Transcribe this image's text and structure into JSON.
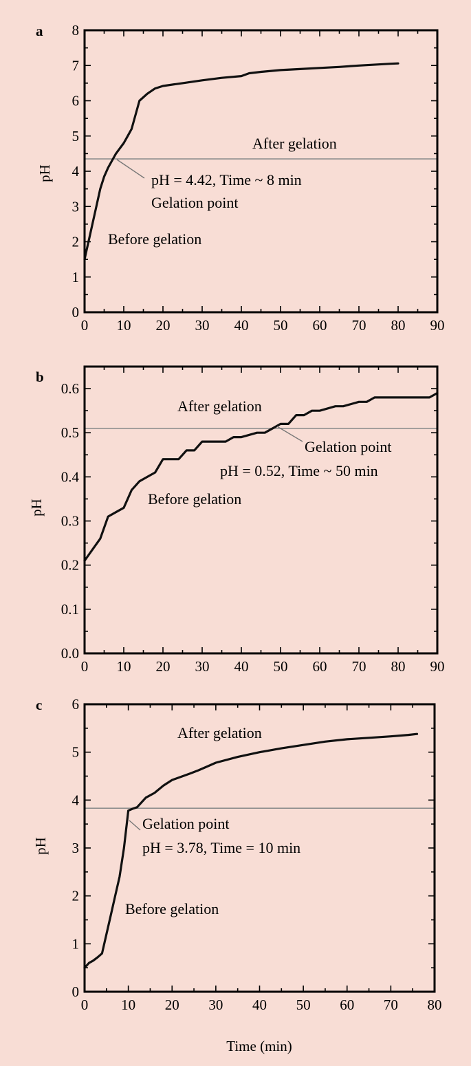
{
  "chart_data": [
    {
      "type": "line",
      "panel": "a",
      "ylabel": "pH",
      "xlabel": "",
      "xlim": [
        0,
        90
      ],
      "ylim": [
        0,
        8
      ],
      "x_ticks": [
        "0",
        "10",
        "20",
        "30",
        "40",
        "50",
        "60",
        "70",
        "80",
        "90"
      ],
      "y_ticks": [
        "0",
        "1",
        "2",
        "3",
        "4",
        "5",
        "6",
        "7",
        "8"
      ],
      "reference_y": 4.35,
      "gelation_point": {
        "x": 8,
        "y": 4.42
      },
      "series": [
        {
          "x": [
            0,
            0.5,
            1,
            2,
            3,
            4,
            5,
            6,
            7,
            8,
            9,
            10,
            11,
            12,
            13,
            14,
            16,
            18,
            20,
            25,
            30,
            35,
            40,
            42,
            45,
            50,
            55,
            60,
            65,
            70,
            75,
            78,
            80
          ],
          "y": [
            1.5,
            1.75,
            2.0,
            2.5,
            3.0,
            3.5,
            3.85,
            4.1,
            4.3,
            4.5,
            4.65,
            4.8,
            5.0,
            5.2,
            5.6,
            6.0,
            6.2,
            6.35,
            6.42,
            6.5,
            6.58,
            6.65,
            6.7,
            6.78,
            6.82,
            6.87,
            6.9,
            6.93,
            6.96,
            7.0,
            7.03,
            7.05,
            7.06
          ]
        }
      ],
      "annotations": {
        "after": "After gelation",
        "point_line1": "pH = 4.42, Time ~ 8 min",
        "point_line2": "Gelation point",
        "before": "Before gelation"
      }
    },
    {
      "type": "line",
      "panel": "b",
      "ylabel": "pH",
      "xlabel": "",
      "xlim": [
        0,
        90
      ],
      "ylim": [
        0,
        0.65
      ],
      "x_ticks": [
        "0",
        "10",
        "20",
        "30",
        "40",
        "50",
        "60",
        "70",
        "80",
        "90"
      ],
      "y_ticks": [
        "0.0",
        "0.1",
        "0.2",
        "0.3",
        "0.4",
        "0.5",
        "0.6"
      ],
      "reference_y": 0.51,
      "gelation_point": {
        "x": 50,
        "y": 0.52
      },
      "series": [
        {
          "x": [
            0,
            2,
            4,
            6,
            8,
            10,
            12,
            14,
            16,
            18,
            20,
            24,
            26,
            28,
            30,
            36,
            38,
            40,
            44,
            46,
            48,
            50,
            52,
            54,
            56,
            58,
            60,
            64,
            66,
            70,
            72,
            74,
            78,
            80,
            82,
            88,
            90
          ],
          "y": [
            0.21,
            0.235,
            0.26,
            0.31,
            0.32,
            0.33,
            0.37,
            0.39,
            0.4,
            0.41,
            0.44,
            0.44,
            0.46,
            0.46,
            0.48,
            0.48,
            0.49,
            0.49,
            0.5,
            0.5,
            0.51,
            0.52,
            0.52,
            0.54,
            0.54,
            0.55,
            0.55,
            0.56,
            0.56,
            0.57,
            0.57,
            0.58,
            0.58,
            0.58,
            0.58,
            0.58,
            0.59
          ]
        }
      ],
      "annotations": {
        "after": "After gelation",
        "point_line1": "Gelation point",
        "point_line2": "pH = 0.52, Time ~ 50 min",
        "before": "Before gelation"
      }
    },
    {
      "type": "line",
      "panel": "c",
      "ylabel": "pH",
      "xlabel": "Time (min)",
      "xlim": [
        0,
        80
      ],
      "ylim": [
        0,
        6
      ],
      "x_ticks": [
        "0",
        "10",
        "20",
        "30",
        "40",
        "50",
        "60",
        "70",
        "80"
      ],
      "y_ticks": [
        "0",
        "1",
        "2",
        "3",
        "4",
        "5",
        "6"
      ],
      "reference_y": 3.83,
      "gelation_point": {
        "x": 10,
        "y": 3.78
      },
      "series": [
        {
          "x": [
            0,
            1,
            2,
            3,
            4,
            5,
            6,
            7,
            8,
            9,
            10,
            11,
            12,
            13,
            14,
            16,
            18,
            20,
            24,
            26,
            28,
            30,
            35,
            40,
            45,
            50,
            55,
            60,
            65,
            70,
            74,
            76
          ],
          "y": [
            0.5,
            0.6,
            0.65,
            0.72,
            0.8,
            1.2,
            1.6,
            2.0,
            2.4,
            3.0,
            3.78,
            3.82,
            3.85,
            3.95,
            4.05,
            4.15,
            4.3,
            4.42,
            4.55,
            4.62,
            4.7,
            4.78,
            4.9,
            5.0,
            5.08,
            5.15,
            5.22,
            5.27,
            5.3,
            5.33,
            5.36,
            5.38
          ]
        }
      ],
      "annotations": {
        "after": "After gelation",
        "point_line1": "Gelation point",
        "point_line2": "pH = 3.78, Time = 10 min",
        "before": "Before gelation"
      }
    }
  ]
}
